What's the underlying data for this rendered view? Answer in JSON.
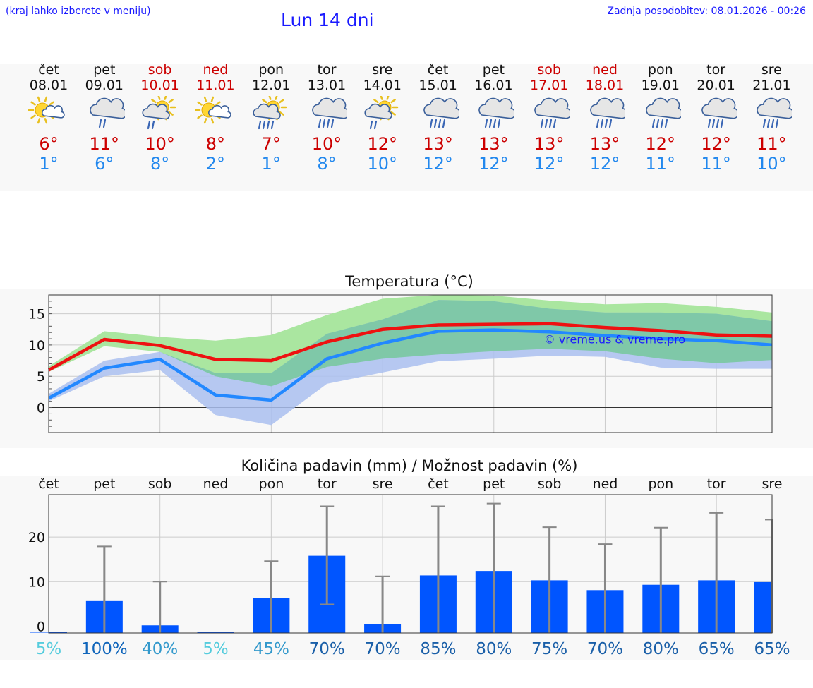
{
  "header": {
    "left_note": "(kraj lahko izberete v meniju)",
    "title": "Lun 14 dni",
    "updated": "Zadnja posodobitev: 08.01.2026 - 00:26"
  },
  "forecast": [
    {
      "day": "čet",
      "date": "08.01",
      "weekend": false,
      "icon": "sun-cloud-icon",
      "tmax": "6°",
      "tmin": "1°"
    },
    {
      "day": "pet",
      "date": "09.01",
      "weekend": false,
      "icon": "cloud-rain-icon",
      "tmax": "11°",
      "tmin": "6°"
    },
    {
      "day": "sob",
      "date": "10.01",
      "weekend": true,
      "icon": "sun-cloud-rain-icon",
      "tmax": "10°",
      "tmin": "8°"
    },
    {
      "day": "ned",
      "date": "11.01",
      "weekend": true,
      "icon": "sun-cloud-icon",
      "tmax": "8°",
      "tmin": "2°"
    },
    {
      "day": "pon",
      "date": "12.01",
      "weekend": false,
      "icon": "sun-cloud-heavy-rain-icon",
      "tmax": "7°",
      "tmin": "1°"
    },
    {
      "day": "tor",
      "date": "13.01",
      "weekend": false,
      "icon": "cloud-heavy-rain-icon",
      "tmax": "10°",
      "tmin": "8°"
    },
    {
      "day": "sre",
      "date": "14.01",
      "weekend": false,
      "icon": "sun-cloud-rain-icon",
      "tmax": "12°",
      "tmin": "10°"
    },
    {
      "day": "čet",
      "date": "15.01",
      "weekend": false,
      "icon": "cloud-heavy-rain-icon",
      "tmax": "13°",
      "tmin": "12°"
    },
    {
      "day": "pet",
      "date": "16.01",
      "weekend": false,
      "icon": "cloud-heavy-rain-icon",
      "tmax": "13°",
      "tmin": "12°"
    },
    {
      "day": "sob",
      "date": "17.01",
      "weekend": true,
      "icon": "cloud-heavy-rain-icon",
      "tmax": "13°",
      "tmin": "12°"
    },
    {
      "day": "ned",
      "date": "18.01",
      "weekend": true,
      "icon": "cloud-heavy-rain-icon",
      "tmax": "13°",
      "tmin": "12°"
    },
    {
      "day": "pon",
      "date": "19.01",
      "weekend": false,
      "icon": "cloud-heavy-rain-icon",
      "tmax": "12°",
      "tmin": "11°"
    },
    {
      "day": "tor",
      "date": "20.01",
      "weekend": false,
      "icon": "cloud-heavy-rain-icon",
      "tmax": "12°",
      "tmin": "11°"
    },
    {
      "day": "sre",
      "date": "21.01",
      "weekend": false,
      "icon": "cloud-heavy-rain-icon",
      "tmax": "11°",
      "tmin": "10°"
    }
  ],
  "colors": {
    "max_line": "#ee1111",
    "min_line": "#2288ff",
    "max_band": "#aae6a0",
    "min_band": "#aabff0",
    "overlap_band": "#7fc8a8",
    "bar": "#0055ff",
    "whisker": "#888888",
    "watermark": "#1a1aff"
  },
  "chart_data": [
    {
      "type": "line",
      "title": "Temperatura (°C)",
      "watermark": "© vreme.us & vreme.pro",
      "x": [
        0,
        1,
        2,
        3,
        4,
        5,
        6,
        7,
        8,
        9,
        10,
        11,
        12,
        13
      ],
      "ylim": [
        -4,
        18
      ],
      "yticks": [
        0,
        5,
        10,
        15
      ],
      "grid": true,
      "series": [
        {
          "name": "max",
          "values": [
            6.0,
            10.9,
            9.9,
            7.7,
            7.5,
            10.5,
            12.5,
            13.2,
            13.3,
            13.4,
            12.8,
            12.3,
            11.6,
            11.4
          ]
        },
        {
          "name": "min",
          "values": [
            1.5,
            6.3,
            7.7,
            2.0,
            1.2,
            7.8,
            10.3,
            12.2,
            12.4,
            12.1,
            11.5,
            11.0,
            10.7,
            10.0
          ]
        }
      ],
      "bands": [
        {
          "name": "max_range",
          "low": [
            5.7,
            9.8,
            8.9,
            5.0,
            3.4,
            6.5,
            7.8,
            8.5,
            9.0,
            9.4,
            9.0,
            7.8,
            7.1,
            7.6
          ],
          "high": [
            6.6,
            12.2,
            11.3,
            10.7,
            11.6,
            14.8,
            17.4,
            18.0,
            17.9,
            17.1,
            16.5,
            16.7,
            16.1,
            15.2
          ]
        },
        {
          "name": "min_range",
          "low": [
            1.0,
            5.0,
            6.0,
            -1.2,
            -2.8,
            3.8,
            5.6,
            7.4,
            7.8,
            8.3,
            8.1,
            6.4,
            6.2,
            6.2
          ],
          "high": [
            2.2,
            7.5,
            8.9,
            5.5,
            5.5,
            11.8,
            14.1,
            17.2,
            17.0,
            15.8,
            15.2,
            15.2,
            15.0,
            13.8
          ]
        }
      ]
    },
    {
      "type": "bar",
      "title": "Količina padavin (mm) / Možnost padavin (%)",
      "categories": [
        "čet",
        "pet",
        "sob",
        "ned",
        "pon",
        "tor",
        "sre",
        "čet",
        "pet",
        "sob",
        "ned",
        "pon",
        "tor",
        "sre"
      ],
      "values": [
        0,
        5.8,
        0.2,
        0,
        6.4,
        15.8,
        0.5,
        11.4,
        12.4,
        10.3,
        8.1,
        9.3,
        10.3,
        9.9
      ],
      "err_low": [
        0,
        0,
        0,
        0,
        0,
        4.9,
        0,
        0,
        0,
        0,
        0,
        0,
        0,
        0
      ],
      "err_high": [
        0,
        17.9,
        10.0,
        0,
        14.6,
        26.9,
        11.2,
        26.9,
        27.5,
        22.2,
        18.4,
        22.1,
        25.4,
        23.9
      ],
      "ylim": [
        -1.5,
        29.5
      ],
      "yticks": [
        0,
        10,
        20
      ],
      "grid": true,
      "probabilities": [
        "5%",
        "100%",
        "40%",
        "5%",
        "45%",
        "70%",
        "70%",
        "85%",
        "80%",
        "75%",
        "70%",
        "80%",
        "65%",
        "65%"
      ],
      "probability_colors": [
        "#55ccdd",
        "#1166bb",
        "#3399cc",
        "#55ccdd",
        "#3399cc",
        "#1a5fa8",
        "#1a5fa8",
        "#1a5fa8",
        "#1a5fa8",
        "#1a5fa8",
        "#1a5fa8",
        "#1a5fa8",
        "#1a5fa8",
        "#1a5fa8"
      ]
    }
  ]
}
